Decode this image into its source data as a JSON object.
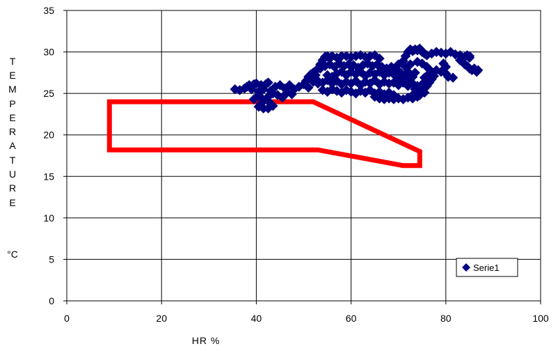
{
  "chart_data": {
    "type": "scatter",
    "xlabel": "HR %",
    "ylabel_letters": [
      "T",
      "E",
      "M",
      "P",
      "E",
      "R",
      "A",
      "T",
      "U",
      "R",
      "E",
      "",
      "°C"
    ],
    "xlim": [
      0,
      100
    ],
    "ylim": [
      0,
      35
    ],
    "xticks": [
      "0",
      "20",
      "40",
      "60",
      "80",
      "100"
    ],
    "yticks": [
      "0",
      "5",
      "10",
      "15",
      "20",
      "25",
      "30",
      "35"
    ],
    "grid": true,
    "legend_position": "bottom-right",
    "colors": {
      "series": "#000080",
      "zone": "#ff0000",
      "grid": "#000000"
    },
    "zone_polygon": [
      [
        9,
        24
      ],
      [
        52,
        24
      ],
      [
        74.5,
        18
      ],
      [
        74.5,
        16.3
      ],
      [
        71,
        16.3
      ],
      [
        53,
        18.2
      ],
      [
        9,
        18.2
      ]
    ],
    "series": [
      {
        "name": "Serie1",
        "marker": "diamond",
        "points": [
          [
            35.5,
            25.5
          ],
          [
            36.5,
            25.4
          ],
          [
            37.5,
            25.6
          ],
          [
            38,
            25.8
          ],
          [
            38.5,
            26
          ],
          [
            39,
            25.5
          ],
          [
            39.5,
            26.1
          ],
          [
            40,
            26.2
          ],
          [
            40.5,
            25.2
          ],
          [
            41,
            26
          ],
          [
            41.5,
            25.5
          ],
          [
            42,
            26.1
          ],
          [
            42.5,
            26.3
          ],
          [
            43,
            25.3
          ],
          [
            44,
            25.8
          ],
          [
            45,
            26
          ],
          [
            46,
            25.6
          ],
          [
            47,
            26
          ],
          [
            48,
            25.5
          ],
          [
            49,
            25.8
          ],
          [
            50,
            26.1
          ],
          [
            51,
            25.7
          ],
          [
            52,
            26.4
          ],
          [
            53,
            26.2
          ],
          [
            39.5,
            24.3
          ],
          [
            40.5,
            24.8
          ],
          [
            41.5,
            24.2
          ],
          [
            42.5,
            24.6
          ],
          [
            43.5,
            25
          ],
          [
            44.5,
            24.8
          ],
          [
            45.5,
            24.5
          ],
          [
            46.5,
            25.1
          ],
          [
            47.5,
            24.9
          ],
          [
            40.5,
            23.4
          ],
          [
            41.5,
            23.2
          ],
          [
            42.5,
            23.2
          ],
          [
            43.5,
            23.5
          ],
          [
            41,
            23.8
          ],
          [
            43,
            23.8
          ],
          [
            50.5,
            26.5
          ],
          [
            51,
            27
          ],
          [
            51.5,
            27.3
          ],
          [
            52,
            27.5
          ],
          [
            52.5,
            27.2
          ],
          [
            53,
            28
          ],
          [
            53.5,
            28.5
          ],
          [
            54,
            29
          ],
          [
            54.5,
            29.4
          ],
          [
            55,
            29.5
          ],
          [
            55.5,
            29.2
          ],
          [
            56,
            29.5
          ],
          [
            57,
            29.3
          ],
          [
            58,
            29.5
          ],
          [
            59,
            29.5
          ],
          [
            60,
            29.4
          ],
          [
            61,
            29.5
          ],
          [
            62,
            29.6
          ],
          [
            63,
            29.4
          ],
          [
            64,
            29.5
          ],
          [
            65,
            29.6
          ],
          [
            66,
            29.2
          ],
          [
            53.5,
            28
          ],
          [
            54.5,
            28.3
          ],
          [
            55.5,
            28.5
          ],
          [
            56.5,
            28.2
          ],
          [
            57.5,
            28.6
          ],
          [
            58.5,
            28.3
          ],
          [
            59.5,
            28.5
          ],
          [
            60.5,
            28.4
          ],
          [
            61.5,
            28.1
          ],
          [
            62.5,
            28.4
          ],
          [
            63.5,
            28.6
          ],
          [
            64.5,
            28.3
          ],
          [
            65.5,
            28.5
          ],
          [
            66.5,
            28.2
          ],
          [
            67.5,
            28
          ],
          [
            68.5,
            28.2
          ],
          [
            69.5,
            27.9
          ],
          [
            55,
            27.2
          ],
          [
            56,
            27
          ],
          [
            57,
            27.4
          ],
          [
            58,
            27.6
          ],
          [
            59,
            27.2
          ],
          [
            60,
            27.6
          ],
          [
            61,
            27.3
          ],
          [
            62,
            27.6
          ],
          [
            63,
            27.1
          ],
          [
            64,
            27.5
          ],
          [
            65,
            27.3
          ],
          [
            66,
            27.6
          ],
          [
            67,
            27.2
          ],
          [
            68,
            27.5
          ],
          [
            69,
            27.3
          ],
          [
            70,
            27.4
          ],
          [
            71,
            27.1
          ],
          [
            72,
            27.6
          ],
          [
            73,
            27
          ],
          [
            53,
            26.5
          ],
          [
            54,
            26.3
          ],
          [
            55,
            26.6
          ],
          [
            56,
            26.2
          ],
          [
            57,
            26.5
          ],
          [
            58,
            26.1
          ],
          [
            59,
            26.4
          ],
          [
            60,
            26.2
          ],
          [
            61,
            26.5
          ],
          [
            62,
            26
          ],
          [
            63,
            26.4
          ],
          [
            64,
            26.2
          ],
          [
            65,
            26.6
          ],
          [
            66,
            26.1
          ],
          [
            67,
            26.4
          ],
          [
            68,
            26.2
          ],
          [
            69,
            26.3
          ],
          [
            70,
            26
          ],
          [
            71,
            26.3
          ],
          [
            72,
            25.9
          ],
          [
            73,
            26.2
          ],
          [
            74,
            25.9
          ],
          [
            75,
            26.1
          ],
          [
            54,
            25.4
          ],
          [
            55,
            25.2
          ],
          [
            56,
            25.5
          ],
          [
            57,
            25.3
          ],
          [
            58,
            25.1
          ],
          [
            59,
            25.4
          ],
          [
            60,
            25.2
          ],
          [
            61,
            25
          ],
          [
            62,
            25.3
          ],
          [
            63,
            25.1
          ],
          [
            64,
            25.4
          ],
          [
            65,
            25
          ],
          [
            66,
            25.2
          ],
          [
            67,
            24.9
          ],
          [
            68,
            25.1
          ],
          [
            69,
            24.8
          ],
          [
            65,
            24.6
          ],
          [
            66,
            24.4
          ],
          [
            67,
            24.3
          ],
          [
            68,
            24.4
          ],
          [
            69,
            24.3
          ],
          [
            70,
            24.4
          ],
          [
            71,
            24.3
          ],
          [
            72,
            24.5
          ],
          [
            73,
            24.4
          ],
          [
            74,
            24.6
          ],
          [
            70,
            28.5
          ],
          [
            71,
            28.9
          ],
          [
            71.5,
            29.5
          ],
          [
            72,
            30
          ],
          [
            72.5,
            30.3
          ],
          [
            73,
            30.1
          ],
          [
            73.5,
            30.3
          ],
          [
            74,
            30.2
          ],
          [
            74.5,
            30.4
          ],
          [
            75,
            30
          ],
          [
            75.5,
            29.8
          ],
          [
            76,
            29.6
          ],
          [
            77,
            29.8
          ],
          [
            78,
            30
          ],
          [
            79,
            29.9
          ],
          [
            80,
            29.8
          ],
          [
            81,
            30
          ],
          [
            82,
            29.7
          ],
          [
            83,
            29.6
          ],
          [
            84,
            29.4
          ],
          [
            85,
            29.5
          ],
          [
            74,
            28.8
          ],
          [
            75,
            28.6
          ],
          [
            76,
            28.2
          ],
          [
            76.5,
            27.9
          ],
          [
            77,
            27.5
          ],
          [
            77.5,
            27.1
          ],
          [
            77,
            26.7
          ],
          [
            76.5,
            26.3
          ],
          [
            76,
            25.9
          ],
          [
            75.5,
            25.6
          ],
          [
            75,
            25.3
          ],
          [
            74,
            25
          ],
          [
            73,
            24.8
          ],
          [
            75.5,
            26.9
          ],
          [
            76.5,
            27.4
          ],
          [
            78,
            27.8
          ],
          [
            79,
            27.6
          ],
          [
            80,
            27.4
          ],
          [
            80.5,
            27
          ],
          [
            81.5,
            26.9
          ],
          [
            80,
            28.2
          ],
          [
            79.5,
            28.6
          ],
          [
            83,
            29
          ],
          [
            83.5,
            28.8
          ],
          [
            84,
            28.5
          ],
          [
            84.5,
            28.3
          ],
          [
            85,
            28
          ],
          [
            85.5,
            27.8
          ],
          [
            86,
            28
          ],
          [
            86.5,
            27.6
          ],
          [
            86.8,
            27.8
          ],
          [
            85,
            29.3
          ],
          [
            84.5,
            29.6
          ],
          [
            70,
            26.8
          ],
          [
            70.5,
            27.5
          ],
          [
            71.5,
            28.2
          ],
          [
            72.5,
            28.5
          ],
          [
            73.5,
            27.5
          ],
          [
            72,
            26.5
          ],
          [
            73.5,
            25.5
          ],
          [
            74.5,
            24.8
          ],
          [
            75.5,
            25.1
          ]
        ]
      }
    ]
  }
}
